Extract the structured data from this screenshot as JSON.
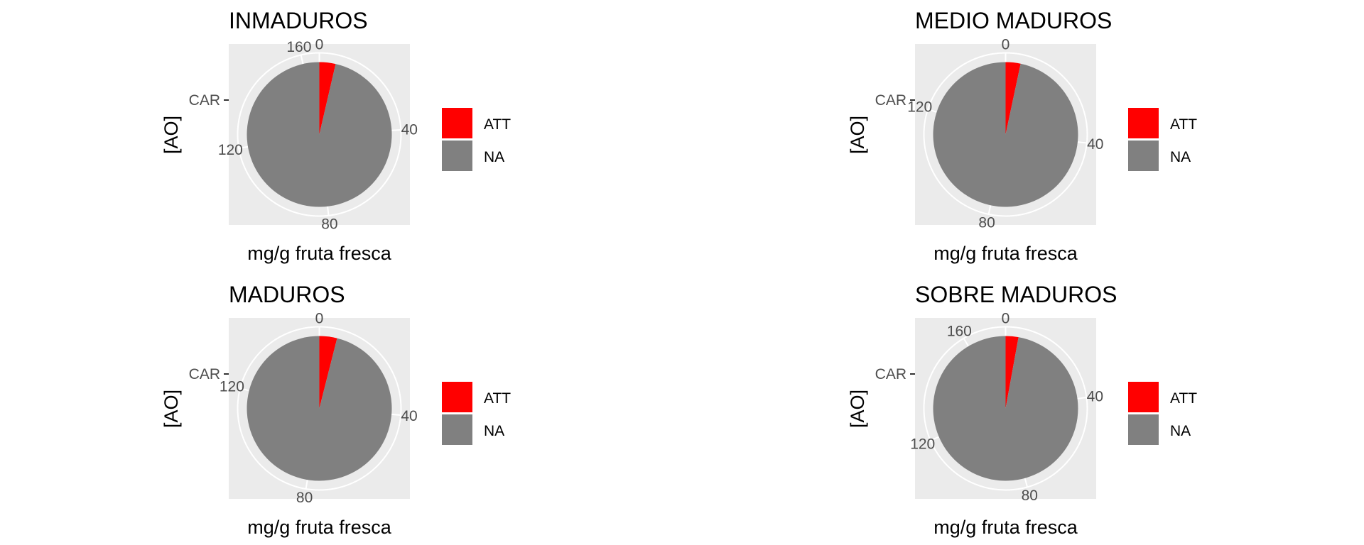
{
  "chart_data": [
    {
      "type": "pie",
      "title": "INMADUROS",
      "xlabel": "mg/g fruta fresca",
      "ylabel": "[AO]",
      "y_tick_labels": [
        "CAR"
      ],
      "theta_ticks": [
        0,
        40,
        80,
        120,
        160
      ],
      "theta_max": 166,
      "slices": [
        {
          "label": "ATT",
          "value": 6
        },
        {
          "label": "NA",
          "value": 160
        }
      ],
      "legend": [
        "ATT",
        "NA"
      ],
      "legend_position": "right"
    },
    {
      "type": "pie",
      "title": "MEDIO MADUROS",
      "xlabel": "mg/g fruta fresca",
      "ylabel": "[AO]",
      "y_tick_labels": [
        "CAR"
      ],
      "theta_ticks": [
        0,
        40,
        80,
        120
      ],
      "theta_max": 150,
      "slices": [
        {
          "label": "ATT",
          "value": 5
        },
        {
          "label": "NA",
          "value": 145
        }
      ],
      "legend": [
        "ATT",
        "NA"
      ],
      "legend_position": "right"
    },
    {
      "type": "pie",
      "title": "MADUROS",
      "xlabel": "mg/g fruta fresca",
      "ylabel": "[AO]",
      "y_tick_labels": [
        "CAR"
      ],
      "theta_ticks": [
        0,
        40,
        80,
        120
      ],
      "theta_max": 152,
      "slices": [
        {
          "label": "ATT",
          "value": 6
        },
        {
          "label": "NA",
          "value": 146
        }
      ],
      "legend": [
        "ATT",
        "NA"
      ],
      "legend_position": "right"
    },
    {
      "type": "pie",
      "title": "SOBRE MADUROS",
      "xlabel": "mg/g fruta fresca",
      "ylabel": "[AO]",
      "y_tick_labels": [
        "CAR"
      ],
      "theta_ticks": [
        0,
        40,
        80,
        120,
        160
      ],
      "theta_max": 175,
      "slices": [
        {
          "label": "ATT",
          "value": 5
        },
        {
          "label": "NA",
          "value": 170
        }
      ],
      "legend": [
        "ATT",
        "NA"
      ],
      "legend_position": "right"
    }
  ],
  "colors": {
    "ATT": "#ff0000",
    "NA": "#808080",
    "panel": "#ebebeb",
    "grid": "#ffffff"
  }
}
